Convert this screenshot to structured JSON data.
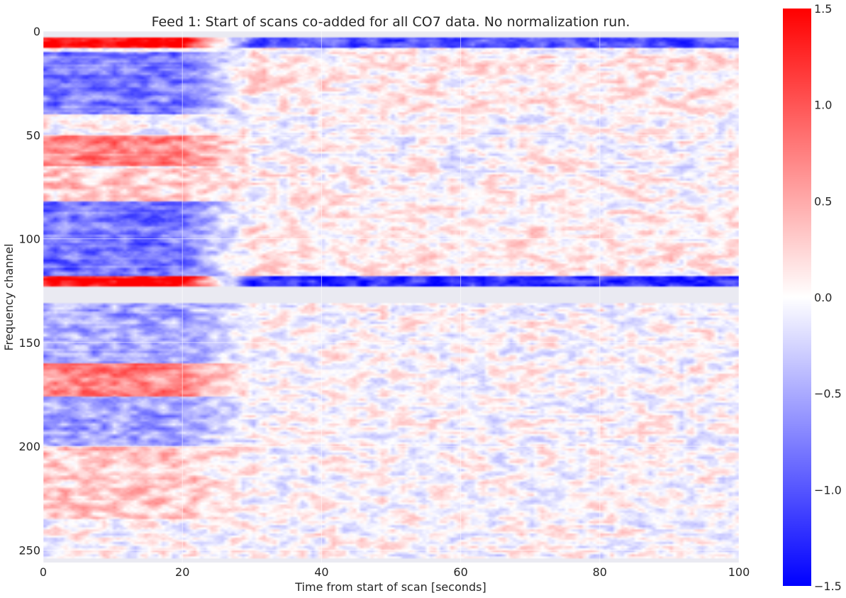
{
  "chart_data": {
    "type": "heatmap",
    "title": "Feed 1: Start of scans co-added for all CO7 data. No normalization run.",
    "xlabel": "Time from start of scan [seconds]",
    "ylabel": "Frequency channel",
    "xlim": [
      0,
      100
    ],
    "ylim": [
      256,
      0
    ],
    "x_ticks": [
      0,
      20,
      40,
      60,
      80,
      100
    ],
    "y_ticks": [
      0,
      50,
      100,
      150,
      200,
      250
    ],
    "colorbar": {
      "colormap": "bwr",
      "vmin": -1.5,
      "vmax": 1.5,
      "ticks": [
        "1.5",
        "1.0",
        "0.5",
        "0.0",
        "−0.5",
        "−1.0",
        "−1.5"
      ],
      "colors": {
        "low": "#0000ff",
        "mid": "#ffffff",
        "high": "#ff0000"
      }
    },
    "grid": true,
    "masked_color": "#eaeaf2",
    "masked_channel_ranges": [
      [
        0,
        3
      ],
      [
        123,
        131
      ],
      [
        254,
        256
      ]
    ],
    "channel_bands": [
      {
        "channels": [
          3,
          8
        ],
        "early_value": 1.5,
        "late_value": -1.0
      },
      {
        "channels": [
          10,
          40
        ],
        "early_value": -0.8,
        "late_value": 0.1
      },
      {
        "channels": [
          50,
          65
        ],
        "early_value": 0.7,
        "late_value": 0.0
      },
      {
        "channels": [
          66,
          82
        ],
        "early_value": 0.3,
        "late_value": 0.05
      },
      {
        "channels": [
          82,
          118
        ],
        "early_value": -0.8,
        "late_value": 0.1
      },
      {
        "channels": [
          118,
          123
        ],
        "early_value": 1.5,
        "late_value": -1.2
      },
      {
        "channels": [
          131,
          160
        ],
        "early_value": -0.5,
        "late_value": 0.0
      },
      {
        "channels": [
          160,
          176
        ],
        "early_value": 0.7,
        "late_value": 0.0
      },
      {
        "channels": [
          176,
          200
        ],
        "early_value": -0.5,
        "late_value": 0.0
      },
      {
        "channels": [
          200,
          235
        ],
        "early_value": 0.3,
        "late_value": 0.0
      }
    ],
    "transient_end_seconds": [
      20,
      30
    ],
    "noise_amplitude": 0.25
  }
}
